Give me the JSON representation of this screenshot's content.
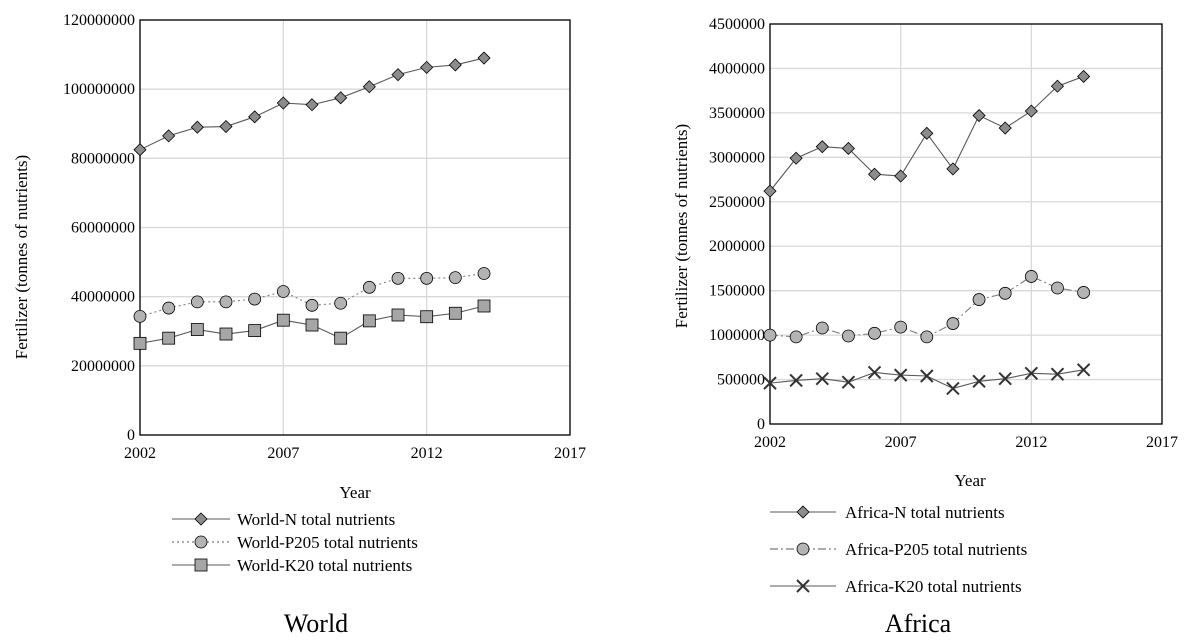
{
  "chart_data": [
    {
      "type": "line",
      "caption": "World",
      "xlabel": "Year",
      "ylabel": "Fertilizer (tonnes of nutrients)",
      "x": [
        2002,
        2003,
        2004,
        2005,
        2006,
        2007,
        2008,
        2009,
        2010,
        2011,
        2012,
        2013,
        2014
      ],
      "xlim": [
        2002,
        2017
      ],
      "xticks": [
        "2002",
        "2007",
        "2012",
        "2017"
      ],
      "ylim": [
        0,
        120000000
      ],
      "yticks": [
        "0",
        "20000000",
        "40000000",
        "60000000",
        "80000000",
        "100000000",
        "120000000"
      ],
      "grid": true,
      "legend_position": "bottom",
      "series": [
        {
          "name": "World-N total nutrients",
          "marker": "diamond",
          "line_style": "solid",
          "values": [
            82500000,
            86500000,
            89000000,
            89200000,
            92000000,
            96000000,
            95500000,
            97500000,
            100700000,
            104200000,
            106300000,
            107000000,
            109000000
          ]
        },
        {
          "name": "World-P205 total nutrients",
          "marker": "circle",
          "line_style": "dotted",
          "values": [
            34300000,
            36700000,
            38500000,
            38500000,
            39300000,
            41500000,
            37500000,
            38100000,
            42700000,
            45300000,
            45300000,
            45500000,
            46700000
          ]
        },
        {
          "name": "World-K20 total nutrients",
          "marker": "square",
          "line_style": "solid",
          "values": [
            26500000,
            28000000,
            30500000,
            29200000,
            30200000,
            33200000,
            31800000,
            28000000,
            33000000,
            34700000,
            34200000,
            35200000,
            37300000
          ]
        }
      ]
    },
    {
      "type": "line",
      "caption": "Africa",
      "xlabel": "Year",
      "ylabel": "Fertilizer (tonnes of nutrients)",
      "x": [
        2002,
        2003,
        2004,
        2005,
        2006,
        2007,
        2008,
        2009,
        2010,
        2011,
        2012,
        2013,
        2014
      ],
      "xlim": [
        2002,
        2017
      ],
      "xticks": [
        "2002",
        "2007",
        "2012",
        "2017"
      ],
      "ylim": [
        0,
        4500000
      ],
      "yticks": [
        "0",
        "500000",
        "1000000",
        "1500000",
        "2000000",
        "2500000",
        "3000000",
        "3500000",
        "4000000",
        "4500000"
      ],
      "grid": true,
      "legend_position": "bottom",
      "series": [
        {
          "name": "Africa-N total nutrients",
          "marker": "diamond",
          "line_style": "solid",
          "values": [
            2620000,
            2990000,
            3120000,
            3100000,
            2810000,
            2790000,
            3270000,
            2870000,
            3470000,
            3330000,
            3520000,
            3800000,
            3910000
          ]
        },
        {
          "name": "Africa-P205 total nutrients",
          "marker": "circle",
          "line_style": "dashdot",
          "values": [
            1000000,
            980000,
            1080000,
            990000,
            1020000,
            1090000,
            980000,
            1130000,
            1400000,
            1470000,
            1660000,
            1530000,
            1480000
          ]
        },
        {
          "name": "Africa-K20 total nutrients",
          "marker": "x",
          "line_style": "solid",
          "values": [
            460000,
            490000,
            510000,
            470000,
            580000,
            550000,
            540000,
            400000,
            480000,
            510000,
            570000,
            560000,
            610000
          ]
        }
      ]
    }
  ]
}
